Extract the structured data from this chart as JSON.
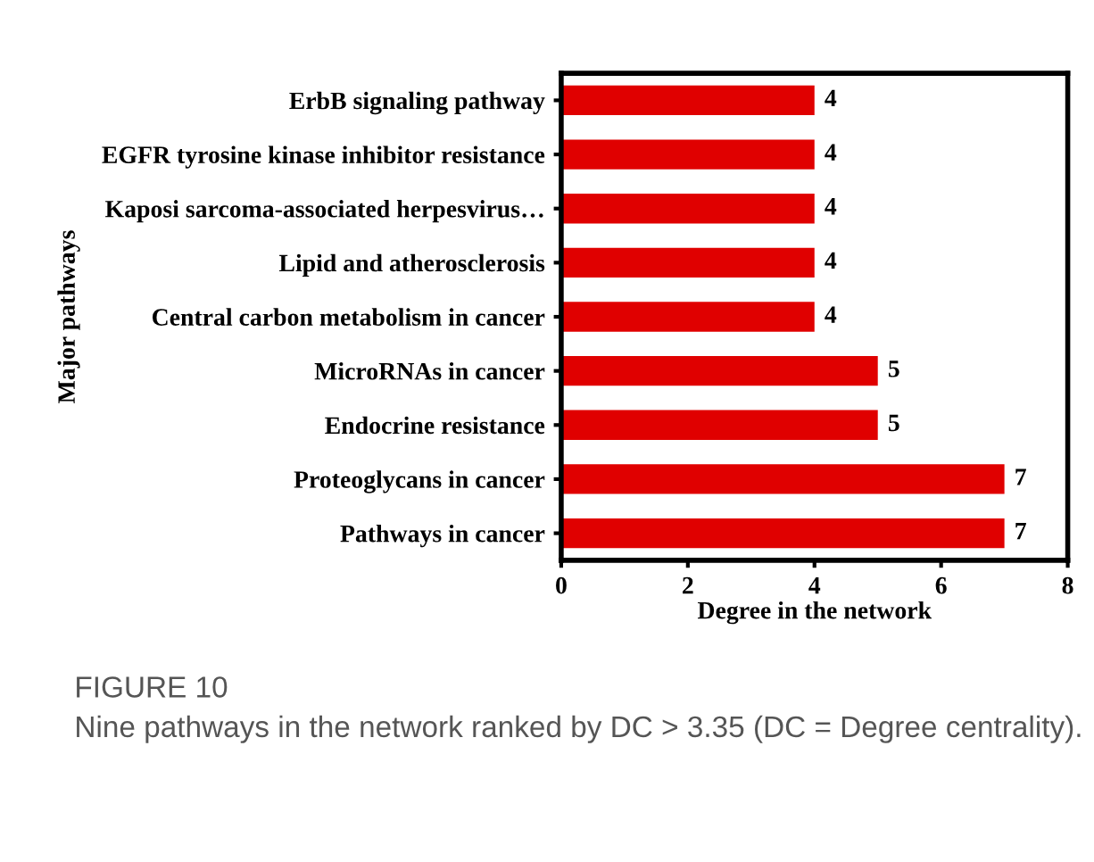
{
  "chart_data": {
    "type": "bar",
    "orientation": "horizontal",
    "xlabel": "Degree in the network",
    "ylabel": "Major pathways",
    "categories": [
      "ErbB signaling pathway",
      "EGFR tyrosine kinase inhibitor resistance",
      "Kaposi sarcoma-associated herpesvirus…",
      "Lipid and atherosclerosis",
      "Central carbon metabolism in cancer",
      "MicroRNAs in cancer",
      "Endocrine resistance",
      "Proteoglycans in cancer",
      "Pathways in cancer"
    ],
    "values": [
      4,
      4,
      4,
      4,
      4,
      5,
      5,
      7,
      7
    ],
    "color": "#e00000",
    "xlim": [
      0,
      8
    ],
    "xticks": [
      0,
      2,
      4,
      6,
      8
    ],
    "grid": false,
    "data_labels": true,
    "annotations": [
      "FIGURE 10",
      "Nine pathways in the network ranked by DC > 3.35 (DC = Degree centrality)."
    ]
  }
}
